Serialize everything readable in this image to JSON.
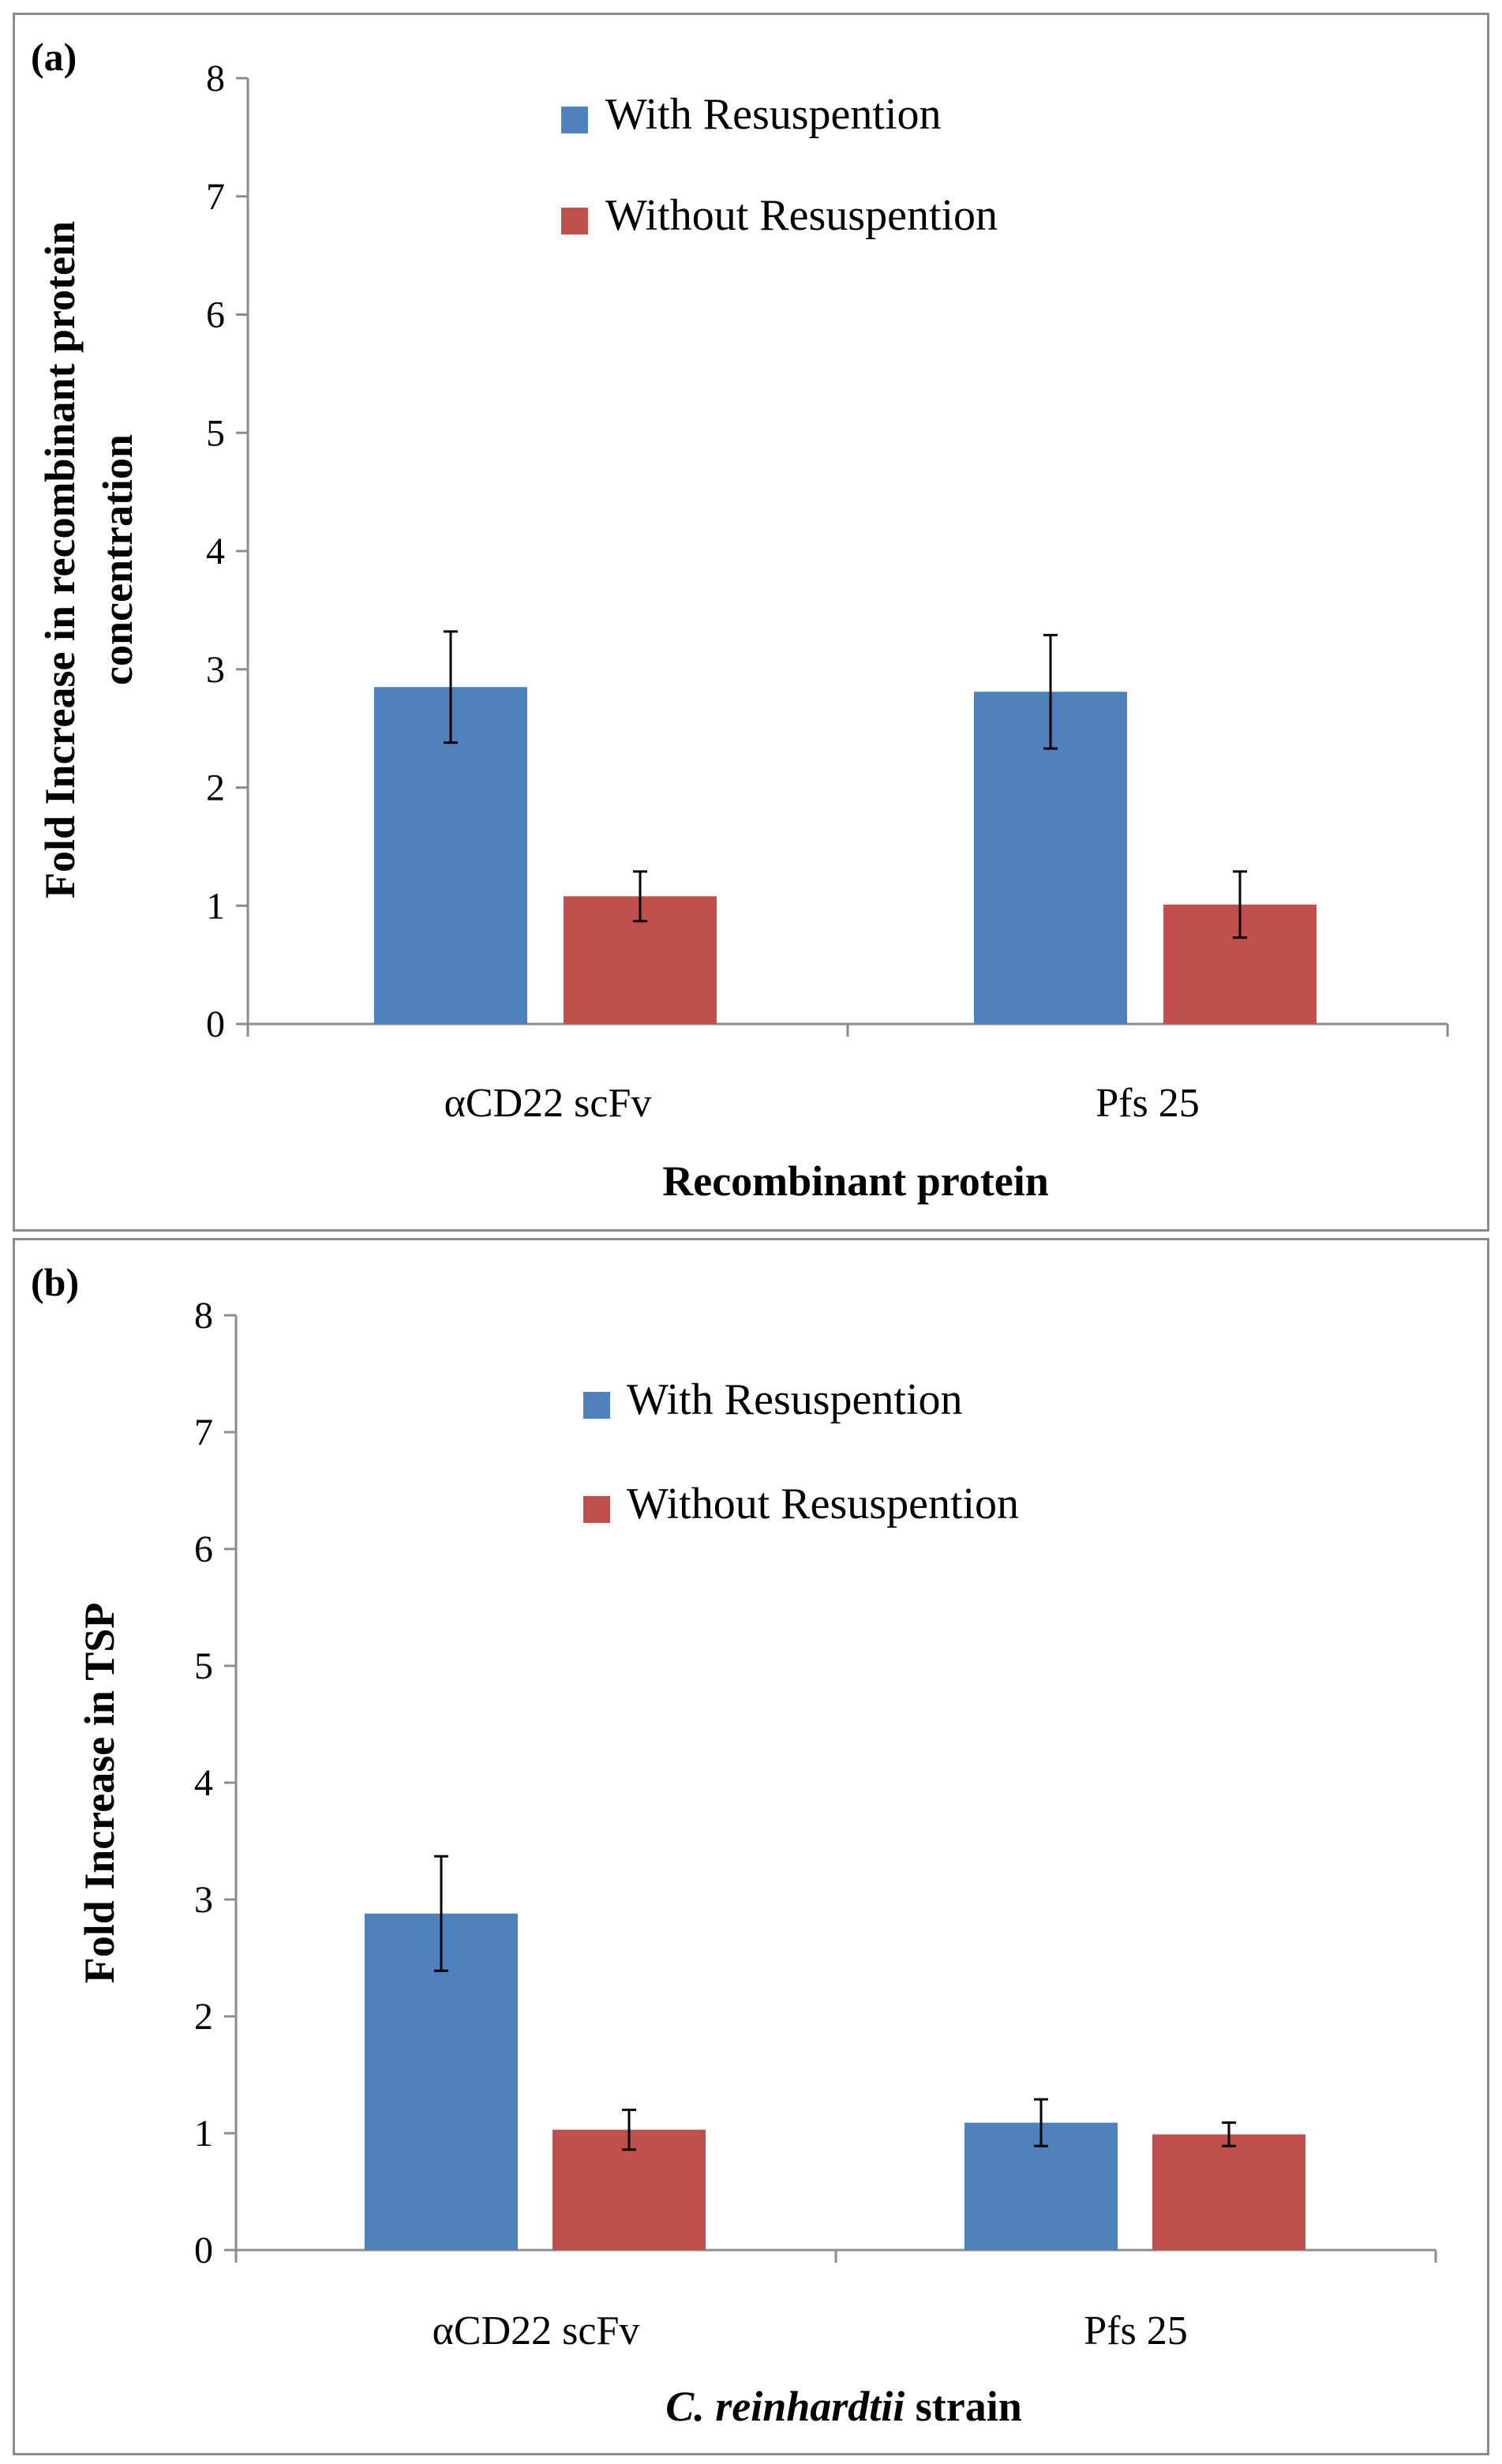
{
  "colors": {
    "with": "#4f81bd",
    "without": "#c0504d",
    "axis": "#8c8c8c"
  },
  "chart_data": [
    {
      "type": "bar",
      "panel_label": "(a)",
      "categories": [
        "αCD22 scFv",
        "Pfs 25"
      ],
      "xlabel": "Recombinant protein",
      "xlabel_parts": [
        {
          "text": "Recombinant protein",
          "italic": false
        }
      ],
      "ylabel_lines": [
        "Fold Increase in recombinant protein",
        "concentration"
      ],
      "ylim": [
        0,
        8
      ],
      "yticks": [
        "0",
        "1",
        "2",
        "3",
        "4",
        "5",
        "6",
        "7",
        "8"
      ],
      "legend_position": "top-center",
      "series": [
        {
          "name": "With Resuspention",
          "color": "#4f81bd",
          "values": [
            2.85,
            2.81
          ],
          "errors": [
            0.47,
            0.48
          ]
        },
        {
          "name": "Without Resuspention",
          "color": "#c0504d",
          "values": [
            1.08,
            1.01
          ],
          "errors": [
            0.21,
            0.28
          ]
        }
      ]
    },
    {
      "type": "bar",
      "panel_label": "(b)",
      "categories": [
        "αCD22 scFv",
        "Pfs 25"
      ],
      "xlabel": "C. reinhardtii strain",
      "xlabel_parts": [
        {
          "text": "C. reinhardtii",
          "italic": true
        },
        {
          "text": " strain",
          "italic": false
        }
      ],
      "ylabel_lines": [
        "Fold Increase in TSP"
      ],
      "ylim": [
        0,
        8
      ],
      "yticks": [
        "0",
        "1",
        "2",
        "3",
        "4",
        "5",
        "6",
        "7",
        "8"
      ],
      "legend_position": "top-center",
      "series": [
        {
          "name": "With Resuspention",
          "color": "#4f81bd",
          "values": [
            2.88,
            1.09
          ],
          "errors": [
            0.49,
            0.2
          ]
        },
        {
          "name": "Without Resuspention",
          "color": "#c0504d",
          "values": [
            1.03,
            0.99
          ],
          "errors": [
            0.17,
            0.1
          ]
        }
      ]
    }
  ]
}
